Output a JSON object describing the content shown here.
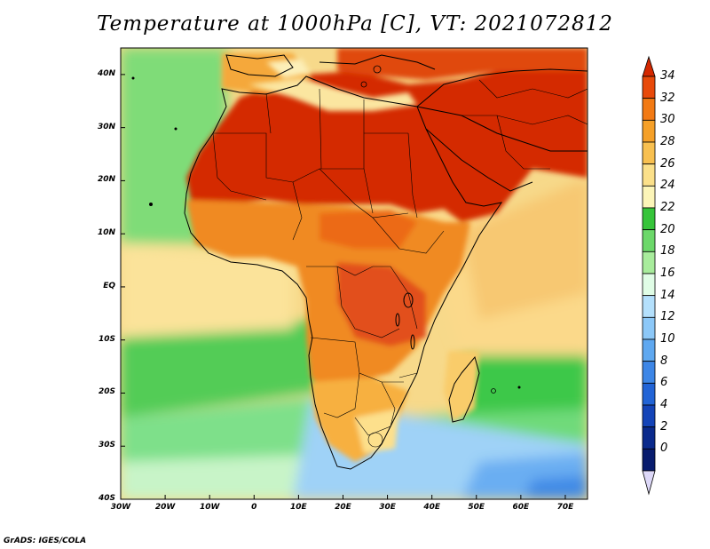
{
  "title": "Temperature at 1000hPa [C], VT: 2021072812",
  "credit": "GrADS: IGES/COLA",
  "map": {
    "variable": "Temperature at 1000hPa",
    "units": "C",
    "valid_time": "2021072812",
    "lon_range": [
      -30,
      75
    ],
    "lat_range": [
      -40,
      45
    ],
    "lat_ticks": [
      "40N",
      "30N",
      "20N",
      "10N",
      "EQ",
      "10S",
      "20S",
      "30S",
      "40S"
    ],
    "lon_ticks": [
      "30W",
      "20W",
      "10W",
      "0",
      "10E",
      "20E",
      "30E",
      "40E",
      "50E",
      "60E",
      "70E"
    ]
  },
  "colorbar": {
    "levels": [
      "34",
      "32",
      "30",
      "28",
      "26",
      "24",
      "22",
      "20",
      "18",
      "16",
      "14",
      "12",
      "10",
      "8",
      "6",
      "4",
      "2",
      "0"
    ],
    "colors": [
      "#d42800",
      "#e84a0a",
      "#f27a14",
      "#f5a028",
      "#f8c050",
      "#fbe08a",
      "#fcf5b8",
      "#36c43a",
      "#6cd86a",
      "#a8ec9c",
      "#e0fde6",
      "#b4e0fc",
      "#8cc8f8",
      "#5fa8f0",
      "#3d86e6",
      "#2264d6",
      "#1444b8",
      "#0a2a8c",
      "#081c6e",
      "#ddd8f8"
    ]
  }
}
